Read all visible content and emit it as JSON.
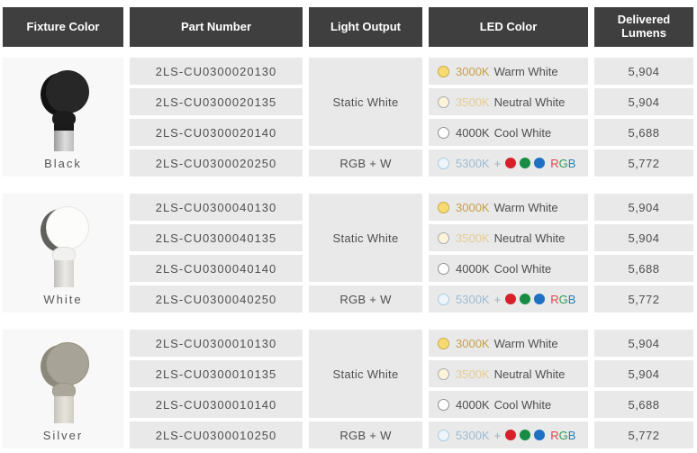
{
  "header": {
    "columns": [
      {
        "label": "Fixture Color"
      },
      {
        "label": "Part Number"
      },
      {
        "label": "Light Output"
      },
      {
        "label": "LED Color"
      },
      {
        "label": "Delivered Lumens"
      }
    ]
  },
  "colors": {
    "header_bg": "#3F3F3F",
    "header_text": "#FFFFFF",
    "cell_bg": "#E9E9E9",
    "fixture_cell_bg": "#F8F8F8",
    "body_text": "#4F4F4F"
  },
  "led_colors": {
    "warm": {
      "fill": "#F8DB70",
      "border": "#C9A94F",
      "text": "#C6A14E"
    },
    "neutral": {
      "fill": "#FCF3DA",
      "border": "#ABABAB",
      "text": "#E5CB95"
    },
    "cool": {
      "fill": "#FFFFFF",
      "border": "#909090",
      "text": "#4F4F4F"
    },
    "rgbw": {
      "fill": "#EDF5FB",
      "border": "#A9CADE",
      "text": "#9FBCD2"
    },
    "plus": "#9FAEB9",
    "dots": {
      "red": "#D6212B",
      "green": "#168C44",
      "blue": "#1D70C2"
    },
    "letters": {
      "r": "#E2454A",
      "g": "#2F9C58",
      "b": "#2E7CC9"
    }
  },
  "groups": [
    {
      "fixture_color": "Black",
      "light_output": {
        "static_label": "Static White",
        "rgbw_label": "RGB + W"
      },
      "rows": [
        {
          "part_number": "2LS-CU0300020130",
          "led": {
            "temp": "3000K",
            "label": "Warm White"
          },
          "lumens": "5,904"
        },
        {
          "part_number": "2LS-CU0300020135",
          "led": {
            "temp": "3500K",
            "label": "Neutral White"
          },
          "lumens": "5,904"
        },
        {
          "part_number": "2LS-CU0300020140",
          "led": {
            "temp": "4000K",
            "label": "Cool White"
          },
          "lumens": "5,688"
        },
        {
          "part_number": "2LS-CU0300020250",
          "led": {
            "temp": "5300K",
            "plus": "+",
            "letters": [
              "R",
              "G",
              "B"
            ]
          },
          "lumens": "5,772"
        }
      ]
    },
    {
      "fixture_color": "White",
      "light_output": {
        "static_label": "Static White",
        "rgbw_label": "RGB + W"
      },
      "rows": [
        {
          "part_number": "2LS-CU0300040130",
          "led": {
            "temp": "3000K",
            "label": "Warm White"
          },
          "lumens": "5,904"
        },
        {
          "part_number": "2LS-CU0300040135",
          "led": {
            "temp": "3500K",
            "label": "Neutral White"
          },
          "lumens": "5,904"
        },
        {
          "part_number": "2LS-CU0300040140",
          "led": {
            "temp": "4000K",
            "label": "Cool White"
          },
          "lumens": "5,688"
        },
        {
          "part_number": "2LS-CU0300040250",
          "led": {
            "temp": "5300K",
            "plus": "+",
            "letters": [
              "R",
              "G",
              "B"
            ]
          },
          "lumens": "5,772"
        }
      ]
    },
    {
      "fixture_color": "Silver",
      "light_output": {
        "static_label": "Static White",
        "rgbw_label": "RGB + W"
      },
      "rows": [
        {
          "part_number": "2LS-CU0300010130",
          "led": {
            "temp": "3000K",
            "label": "Warm White"
          },
          "lumens": "5,904"
        },
        {
          "part_number": "2LS-CU0300010135",
          "led": {
            "temp": "3500K",
            "label": "Neutral White"
          },
          "lumens": "5,904"
        },
        {
          "part_number": "2LS-CU0300010140",
          "led": {
            "temp": "4000K",
            "label": "Cool White"
          },
          "lumens": "5,688"
        },
        {
          "part_number": "2LS-CU0300010250",
          "led": {
            "temp": "5300K",
            "plus": "+",
            "letters": [
              "R",
              "G",
              "B"
            ]
          },
          "lumens": "5,772"
        }
      ]
    }
  ]
}
